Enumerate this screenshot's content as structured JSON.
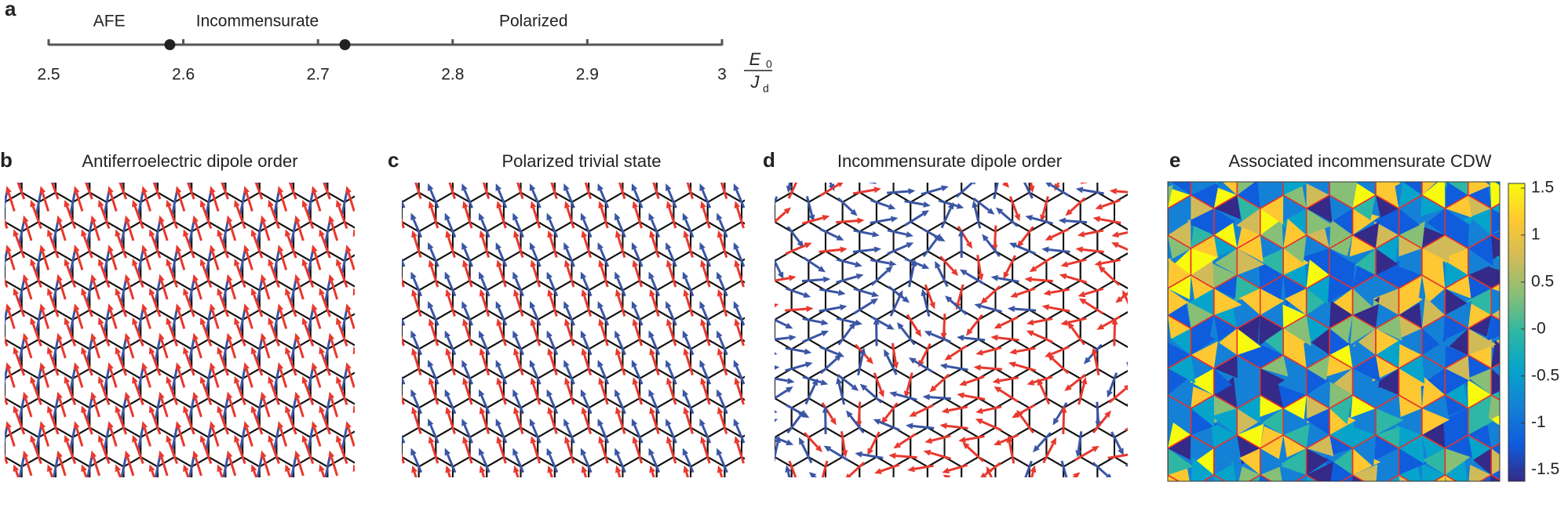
{
  "phase_diagram": {
    "label": "a",
    "xlim": [
      2.5,
      3
    ],
    "xticks": [
      2.5,
      2.6,
      2.7,
      2.8,
      2.9,
      3
    ],
    "boundaries": [
      2.59,
      2.72
    ],
    "phases": [
      "AFE",
      "Incommensurate",
      "Polarized"
    ],
    "axis_label": {
      "numerator": "E",
      "numerator_subscript": "0",
      "denominator": "J",
      "denominator_subscript": "d"
    }
  },
  "panels": [
    {
      "label": "b",
      "title": "Antiferroelectric dipole order"
    },
    {
      "label": "c",
      "title": "Polarized trivial state"
    },
    {
      "label": "d",
      "title": "Incommensurate dipole order"
    },
    {
      "label": "e",
      "title": "Associated incommensurate CDW"
    }
  ],
  "colorbar": {
    "lim": [
      -1.62,
      1.55
    ],
    "ticks": [
      1.5,
      1,
      0.5,
      {
        "value": 0,
        "label": "-0"
      },
      -0.5,
      -1,
      -1.5
    ]
  }
}
